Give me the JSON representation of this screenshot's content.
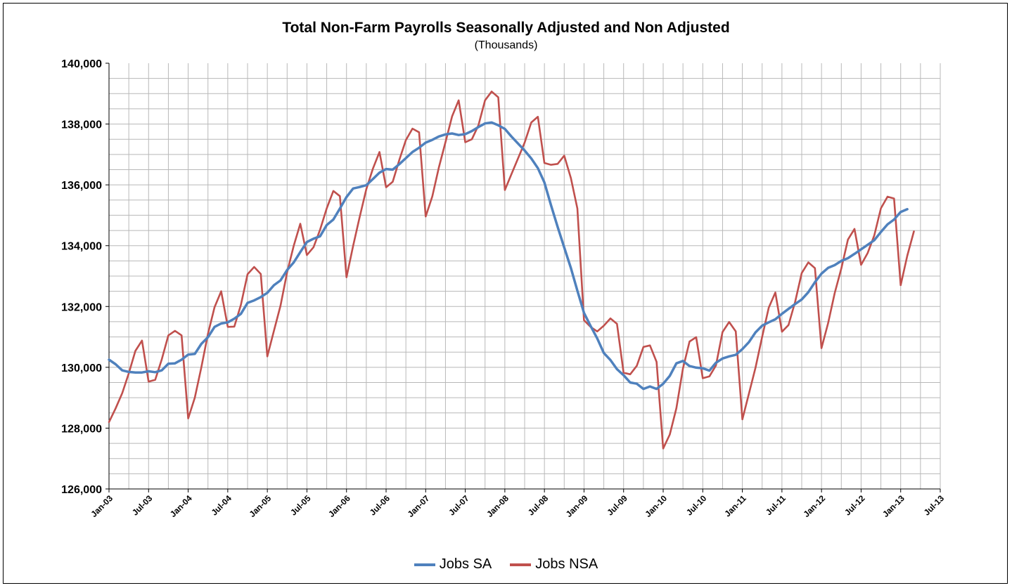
{
  "chart_data": {
    "type": "line",
    "title": "Total Non-Farm Payrolls Seasonally Adjusted and Non Adjusted",
    "subtitle": "(Thousands)",
    "ylim": [
      126000,
      140000
    ],
    "ymajor": [
      126000,
      128000,
      130000,
      132000,
      134000,
      136000,
      138000,
      140000
    ],
    "ytick_labels": [
      "126,000",
      "128,000",
      "130,000",
      "132,000",
      "134,000",
      "136,000",
      "138,000",
      "140,000"
    ],
    "xtick_labels": [
      "Jan-03",
      "Jul-03",
      "Jan-04",
      "Jul-04",
      "Jan-05",
      "Jul-05",
      "Jan-06",
      "Jul-06",
      "Jan-07",
      "Jul-07",
      "Jan-08",
      "Jul-08",
      "Jan-09",
      "Jul-09",
      "Jan-10",
      "Jul-10",
      "Jan-11",
      "Jul-11",
      "Jan-12",
      "Jul-12",
      "Jan-13",
      "Jul-13"
    ],
    "x_start": "Jan-03",
    "x_months": 126,
    "grid": true,
    "legend_position": "bottom",
    "series": [
      {
        "name": "Jobs SA",
        "color": "#4f81bd",
        "values": [
          130250,
          130100,
          129900,
          129850,
          129830,
          129830,
          129870,
          129840,
          129900,
          130120,
          130130,
          130250,
          130420,
          130440,
          130770,
          130990,
          131330,
          131440,
          131480,
          131600,
          131760,
          132120,
          132200,
          132310,
          132450,
          132700,
          132860,
          133200,
          133450,
          133790,
          134120,
          134230,
          134310,
          134680,
          134860,
          135220,
          135600,
          135880,
          135930,
          135990,
          136190,
          136400,
          136520,
          136500,
          136680,
          136880,
          137080,
          137220,
          137390,
          137480,
          137590,
          137660,
          137690,
          137640,
          137670,
          137770,
          137900,
          138020,
          138050,
          137960,
          137840,
          137590,
          137360,
          137130,
          136870,
          136550,
          136080,
          135330,
          134620,
          133940,
          133270,
          132520,
          131790,
          131360,
          130950,
          130470,
          130240,
          129940,
          129740,
          129500,
          129460,
          129290,
          129370,
          129290,
          129460,
          129720,
          130130,
          130210,
          130040,
          129990,
          129970,
          129890,
          130150,
          130290,
          130360,
          130410,
          130600,
          130830,
          131150,
          131370,
          131480,
          131580,
          131760,
          131920,
          132080,
          132230,
          132470,
          132800,
          133080,
          133270,
          133360,
          133500,
          133590,
          133730,
          133880,
          134030,
          134180,
          134450,
          134700,
          134860,
          135110,
          135200
        ]
      },
      {
        "name": "Jobs NSA",
        "color": "#c0504d",
        "values": [
          128200,
          128650,
          129150,
          129800,
          130540,
          130880,
          129530,
          129590,
          130260,
          131050,
          131200,
          131050,
          128320,
          129000,
          130000,
          131100,
          131980,
          132500,
          131330,
          131340,
          132060,
          133060,
          133300,
          133070,
          130360,
          131200,
          132030,
          133130,
          134000,
          134720,
          133690,
          133950,
          134530,
          135230,
          135800,
          135630,
          132960,
          133990,
          134950,
          135860,
          136530,
          137080,
          135920,
          136100,
          136820,
          137470,
          137850,
          137730,
          134960,
          135620,
          136570,
          137400,
          138250,
          138780,
          137400,
          137500,
          137960,
          138780,
          139070,
          138880,
          135830,
          136350,
          136870,
          137390,
          138050,
          138240,
          136720,
          136660,
          136690,
          136960,
          136230,
          135220,
          131550,
          131330,
          131180,
          131370,
          131610,
          131430,
          129820,
          129770,
          130050,
          130670,
          130720,
          130180,
          127330,
          127790,
          128660,
          129960,
          130850,
          130990,
          129640,
          129700,
          130060,
          131160,
          131490,
          131180,
          128290,
          129140,
          129990,
          131000,
          131960,
          132460,
          131170,
          131390,
          132150,
          133100,
          133450,
          133260,
          130630,
          131450,
          132440,
          133250,
          134200,
          134550,
          133370,
          133760,
          134340,
          135230,
          135610,
          135550,
          132700,
          133670,
          134470
        ]
      }
    ]
  }
}
